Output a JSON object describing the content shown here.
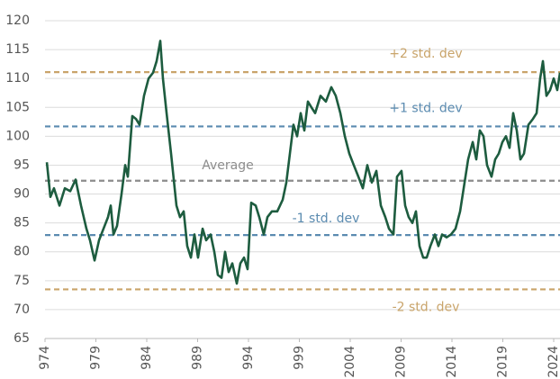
{
  "chart_data": {
    "type": "line",
    "series": [
      {
        "color": "#1d5c3f",
        "x": [
          1974.18,
          1974.53,
          1974.88,
          1975.42,
          1975.95,
          1976.48,
          1977.01,
          1977.54,
          1978.07,
          1978.42,
          1978.87,
          1979.31,
          1979.75,
          1980.19,
          1980.46,
          1980.73,
          1981.08,
          1981.52,
          1981.88,
          1982.14,
          1982.58,
          1982.94,
          1983.29,
          1983.73,
          1984.18,
          1984.62,
          1984.97,
          1985.33,
          1985.59,
          1985.95,
          1986.39,
          1986.92,
          1987.27,
          1987.63,
          1987.98,
          1988.34,
          1988.69,
          1989.04,
          1989.49,
          1989.84,
          1990.28,
          1990.64,
          1990.99,
          1991.35,
          1991.7,
          1992.05,
          1992.41,
          1992.85,
          1993.2,
          1993.56,
          1993.91,
          1994.27,
          1994.71,
          1995.06,
          1995.5,
          1995.86,
          1996.3,
          1996.83,
          1997.36,
          1997.72,
          1998.07,
          1998.42,
          1998.78,
          1999.13,
          1999.49,
          1999.84,
          2000.19,
          2000.55,
          2001.08,
          2001.61,
          2002.14,
          2002.58,
          2003.03,
          2003.47,
          2003.91,
          2004.35,
          2004.8,
          2005.24,
          2005.68,
          2006.12,
          2006.57,
          2007.01,
          2007.45,
          2007.81,
          2008.25,
          2008.6,
          2009.04,
          2009.4,
          2009.75,
          2010.11,
          2010.46,
          2010.81,
          2011.17,
          2011.52,
          2011.88,
          2012.32,
          2012.67,
          2013.03,
          2013.47,
          2013.91,
          2014.35,
          2014.8,
          2015.24,
          2015.59,
          2016.04,
          2016.39,
          2016.74,
          2017.1,
          2017.45,
          2017.89,
          2018.25,
          2018.6,
          2018.96,
          2019.31,
          2019.66,
          2020.02,
          2020.37,
          2020.73,
          2021.08,
          2021.52,
          2021.96,
          2022.32,
          2022.67,
          2022.94,
          2023.29,
          2023.65,
          2024.0,
          2024.35,
          2024.62
        ],
        "values": [
          95.5,
          89.5,
          91,
          88,
          91,
          90.5,
          92.5,
          88,
          84,
          82,
          78.5,
          82,
          84,
          86,
          88,
          83,
          84.5,
          90,
          95,
          93,
          103.5,
          103,
          102,
          107,
          110,
          111,
          113,
          116.5,
          110,
          104,
          97,
          88,
          86,
          87,
          81,
          79,
          83,
          79,
          84,
          82,
          83,
          80,
          76,
          75.5,
          80,
          76.5,
          78,
          74.5,
          78,
          79,
          77,
          88.5,
          88,
          86,
          83,
          86,
          87,
          87,
          89,
          92,
          97,
          102,
          100,
          104,
          101,
          106,
          105,
          104,
          107,
          106,
          108.5,
          107,
          104,
          100,
          97,
          95,
          93,
          91,
          95,
          92,
          94,
          88,
          86,
          84,
          83,
          93,
          94,
          88,
          86,
          85,
          87,
          81,
          79,
          79,
          81,
          83,
          81,
          83,
          82.5,
          83,
          84,
          87,
          92,
          96,
          99,
          96,
          101,
          100,
          95,
          93,
          96,
          97,
          99,
          100,
          98,
          104,
          101,
          96,
          97,
          102,
          103,
          104,
          110,
          113,
          107,
          108,
          110,
          108,
          111
        ]
      }
    ],
    "reference_lines": [
      {
        "label": "+2 std. dev",
        "value": 111.1,
        "color": "#c9a46a"
      },
      {
        "label": "+1 std. dev",
        "value": 101.7,
        "color": "#5b8bb0"
      },
      {
        "label": "Average",
        "value": 92.3,
        "color": "#8c8c8c"
      },
      {
        "label": "-1 std. dev",
        "value": 82.9,
        "color": "#5b8bb0"
      },
      {
        "label": "-2 std. dev",
        "value": 73.5,
        "color": "#c9a46a"
      }
    ],
    "xlim": [
      1974,
      2024.62
    ],
    "xticks": [
      {
        "value": 1974,
        "label": "974"
      },
      {
        "value": 1979,
        "label": "979"
      },
      {
        "value": 1984,
        "label": "984"
      },
      {
        "value": 1989,
        "label": "989"
      },
      {
        "value": 1994,
        "label": "994"
      },
      {
        "value": 1999,
        "label": "999"
      },
      2004,
      2009,
      2014,
      2019,
      2024
    ],
    "ylim": [
      65,
      120
    ],
    "yticks": [
      65,
      70,
      75,
      80,
      85,
      90,
      95,
      100,
      105,
      110,
      115,
      120
    ],
    "grid": true
  }
}
